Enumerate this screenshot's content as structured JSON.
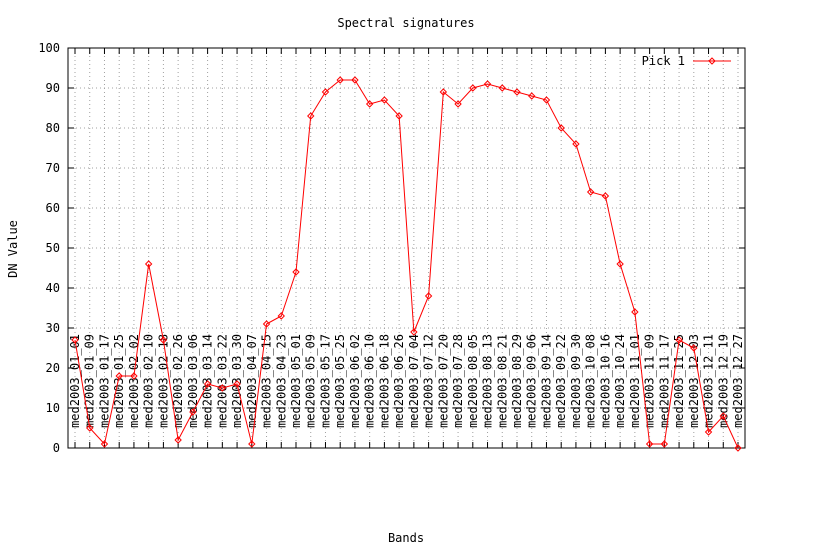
{
  "chart_data": {
    "type": "line",
    "title": "Spectral signatures",
    "xlabel": "Bands",
    "ylabel": "DN Value",
    "ylim": [
      0,
      100
    ],
    "yticks": [
      0,
      10,
      20,
      30,
      40,
      50,
      60,
      70,
      80,
      90,
      100
    ],
    "grid": true,
    "legend_position": "top-right",
    "categories": [
      "med2003_01_01",
      "med2003_01_09",
      "med2003_01_17",
      "med2003_01_25",
      "med2003_02_02",
      "med2003_02_10",
      "med2003_02_18",
      "med2003_02_26",
      "med2003_03_06",
      "med2003_03_14",
      "med2003_03_22",
      "med2003_03_30",
      "med2003_04_07",
      "med2003_04_15",
      "med2003_04_23",
      "med2003_05_01",
      "med2003_05_09",
      "med2003_05_17",
      "med2003_05_25",
      "med2003_06_02",
      "med2003_06_10",
      "med2003_06_18",
      "med2003_06_26",
      "med2003_07_04",
      "med2003_07_12",
      "med2003_07_20",
      "med2003_07_28",
      "med2003_08_05",
      "med2003_08_13",
      "med2003_08_21",
      "med2003_08_29",
      "med2003_09_06",
      "med2003_09_14",
      "med2003_09_22",
      "med2003_09_30",
      "med2003_10_08",
      "med2003_10_16",
      "med2003_10_24",
      "med2003_11_01",
      "med2003_11_09",
      "med2003_11_17",
      "med2003_11_25",
      "med2003_12_03",
      "med2003_12_11",
      "med2003_12_19",
      "med2003_12_27"
    ],
    "series": [
      {
        "name": "Pick 1",
        "color": "#ff0000",
        "marker": "diamond",
        "values": [
          27,
          5,
          1,
          18,
          18,
          46,
          27,
          2,
          9,
          16,
          15,
          16,
          1,
          31,
          33,
          44,
          83,
          89,
          92,
          92,
          86,
          87,
          83,
          29,
          38,
          89,
          86,
          90,
          91,
          90,
          89,
          88,
          87,
          80,
          76,
          64,
          63,
          46,
          34,
          1,
          1,
          27,
          25,
          4,
          8,
          0
        ]
      }
    ]
  }
}
